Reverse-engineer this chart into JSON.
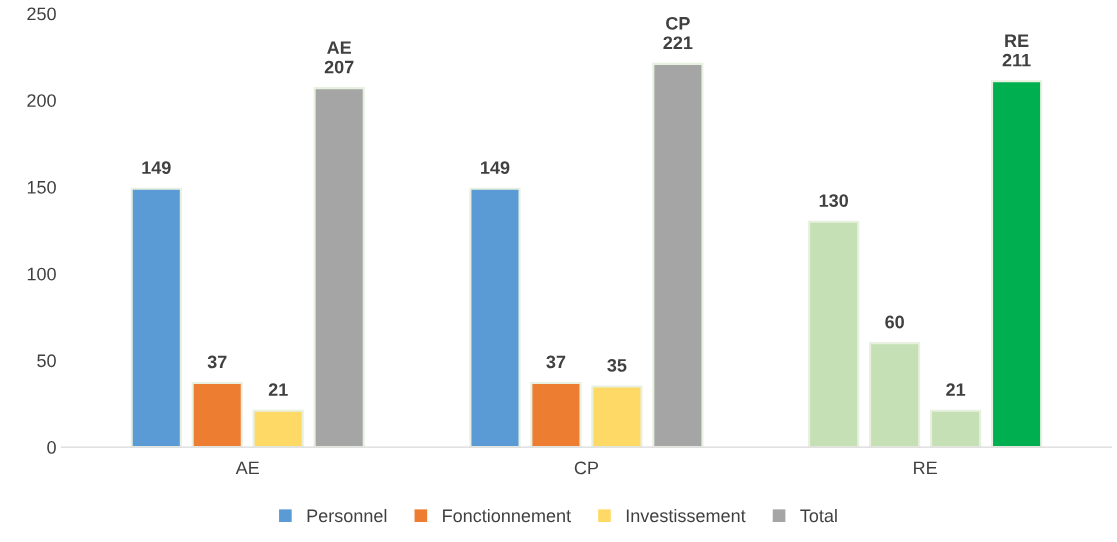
{
  "chart_data": {
    "type": "bar",
    "categories": [
      "AE",
      "CP",
      "RE"
    ],
    "series": [
      {
        "name": "Personnel",
        "color": "#5b9bd5",
        "colors": [
          "#5b9bd5",
          "#5b9bd5",
          "#c5e0b4"
        ],
        "values": [
          149,
          149,
          130
        ]
      },
      {
        "name": "Fonctionnement",
        "color": "#ed7d31",
        "colors": [
          "#ed7d31",
          "#ed7d31",
          "#c5e0b4"
        ],
        "values": [
          37,
          37,
          60
        ]
      },
      {
        "name": "Investissement",
        "color": "#ffd966",
        "colors": [
          "#ffd966",
          "#ffd966",
          "#c5e0b4"
        ],
        "values": [
          21,
          35,
          21
        ]
      },
      {
        "name": "Total",
        "color": "#a5a5a5",
        "colors": [
          "#a5a5a5",
          "#a5a5a5",
          "#00b050"
        ],
        "values": [
          207,
          221,
          211
        ],
        "value_labels": [
          "AE\n207",
          "CP\n221",
          "RE\n211"
        ]
      }
    ],
    "ylim": [
      0,
      250
    ],
    "yticks": [
      0,
      50,
      100,
      150,
      200,
      250
    ],
    "grid": false,
    "legend": "bottom",
    "data_labels": true
  }
}
